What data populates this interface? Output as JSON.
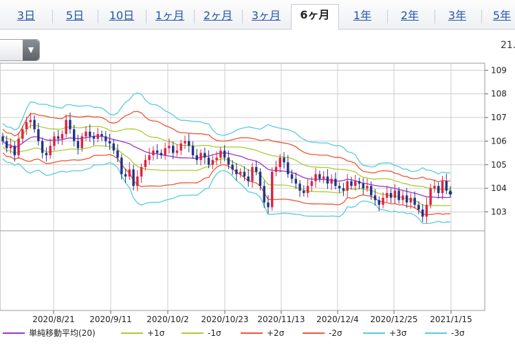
{
  "tabs": [
    {
      "label": "3日",
      "active": false
    },
    {
      "label": "5日",
      "active": false
    },
    {
      "label": "10日",
      "active": false
    },
    {
      "label": "1ヶ月",
      "active": false
    },
    {
      "label": "2ヶ月",
      "active": false
    },
    {
      "label": "3ヶ月",
      "active": false
    },
    {
      "label": "6ヶ月",
      "active": true
    },
    {
      "label": "1年",
      "active": false
    },
    {
      "label": "2年",
      "active": false
    },
    {
      "label": "3年",
      "active": false
    },
    {
      "label": "5年",
      "active": false
    }
  ],
  "corner_text": "21.",
  "colors": {
    "sma": "#9933cc",
    "p1": "#aacc33",
    "m1": "#aacc33",
    "p2": "#ee5533",
    "m2": "#ee5533",
    "p3": "#55ccdd",
    "m3": "#55ccdd",
    "up": "#dd2244",
    "down": "#223388",
    "grid": "#cccccc"
  },
  "chart_data": {
    "type": "candlestick",
    "x_tick_labels": [
      "2020/8/21",
      "2020/9/11",
      "2020/10/2",
      "2020/10/23",
      "2020/11/13",
      "2020/12/4",
      "2020/12/25",
      "2021/1/15"
    ],
    "y_ticks": [
      103,
      104,
      105,
      106,
      107,
      108,
      109
    ],
    "ylim": [
      102.2,
      109.3
    ],
    "grid": true,
    "legend_position": "bottom",
    "legend": [
      {
        "key": "sma",
        "label": "単純移動平均(20)"
      },
      {
        "key": "p1",
        "label": "+1σ"
      },
      {
        "key": "m1",
        "label": "-1σ"
      },
      {
        "key": "p2",
        "label": "+2σ"
      },
      {
        "key": "m2",
        "label": "-2σ"
      },
      {
        "key": "p3",
        "label": "+3σ"
      },
      {
        "key": "m3",
        "label": "-3σ"
      }
    ],
    "close": [
      106.0,
      105.7,
      105.8,
      105.4,
      106.1,
      106.5,
      106.8,
      106.9,
      106.5,
      106.0,
      105.5,
      105.4,
      105.8,
      106.2,
      106.1,
      106.3,
      106.9,
      106.5,
      106.0,
      105.7,
      106.2,
      106.4,
      106.2,
      106.1,
      106.3,
      106.2,
      106.0,
      105.9,
      105.6,
      105.3,
      104.6,
      104.5,
      104.8,
      104.1,
      104.5,
      104.9,
      105.2,
      105.4,
      105.6,
      105.5,
      105.4,
      105.7,
      105.8,
      105.5,
      105.6,
      105.9,
      106.0,
      105.8,
      105.4,
      105.2,
      105.5,
      105.3,
      105.0,
      105.2,
      105.3,
      105.6,
      105.3,
      105.0,
      104.8,
      104.6,
      104.7,
      104.5,
      104.3,
      104.9,
      104.7,
      104.1,
      103.4,
      103.2,
      104.7,
      104.9,
      105.3,
      105.1,
      104.6,
      104.4,
      104.2,
      103.9,
      103.8,
      104.1,
      104.3,
      104.6,
      104.4,
      104.5,
      104.2,
      104.4,
      104.1,
      104.0,
      103.9,
      104.3,
      104.1,
      104.3,
      104.2,
      104.0,
      104.1,
      103.7,
      103.5,
      103.3,
      103.6,
      103.8,
      103.6,
      103.9,
      103.5,
      103.7,
      103.4,
      103.6,
      103.3,
      103.1,
      102.8,
      103.3,
      104.0,
      104.1,
      103.8,
      104.3,
      103.9,
      103.8
    ]
  }
}
